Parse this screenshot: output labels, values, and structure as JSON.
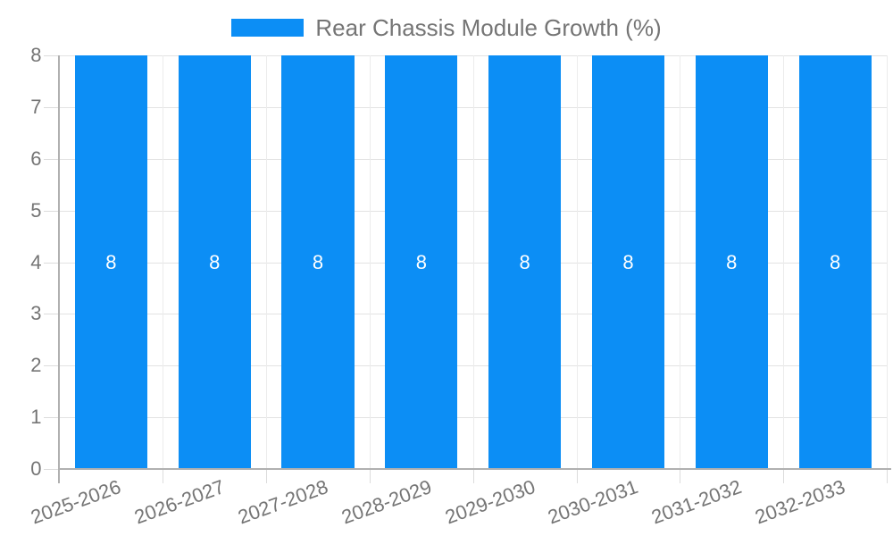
{
  "legend": {
    "label": "Rear Chassis Module Growth (%)"
  },
  "chart_data": {
    "type": "bar",
    "title": "Rear Chassis Module Growth (%)",
    "categories": [
      "2025-2026",
      "2026-2027",
      "2027-2028",
      "2028-2029",
      "2029-2030",
      "2030-2031",
      "2031-2032",
      "2032-2033"
    ],
    "series": [
      {
        "name": "Rear Chassis Module Growth (%)",
        "values": [
          8,
          8,
          8,
          8,
          8,
          8,
          8,
          8
        ]
      }
    ],
    "bar_value_labels": [
      "8",
      "8",
      "8",
      "8",
      "8",
      "8",
      "8",
      "8"
    ],
    "xlabel": "",
    "ylabel": "",
    "ylim": [
      0,
      8
    ],
    "yticks": [
      "0",
      "1",
      "2",
      "3",
      "4",
      "5",
      "6",
      "7",
      "8"
    ],
    "grid": true,
    "legend_position": "top-center",
    "x_label_rotation": -20,
    "colors": {
      "bar": "#0c8ef5",
      "text": "#757575",
      "value_label": "#ffffff",
      "gridline": "#e3e3e3",
      "gridline_vertical": "#ececec",
      "tick": "#dcdcdc",
      "axis_line": "#b0b0b0"
    }
  }
}
